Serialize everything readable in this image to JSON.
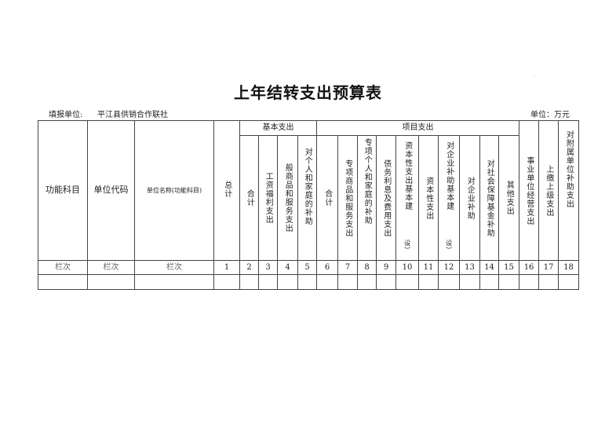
{
  "title": "上年结转支出预算表",
  "filler_label": "填报单位:",
  "filler_value": "平江县供销合作联社",
  "unit": "单位：万元",
  "header": {
    "func_subject": "功能科目",
    "unit_code": "单位代码",
    "unit_name": "单位名称(功能科目)",
    "total": "总计",
    "basic_group": "基本支出",
    "project_group": "项目支出",
    "basic_cols": [
      "合计",
      "工资福利支出",
      "般商品和服务支出",
      "对个人和家庭的补助"
    ],
    "project_cols": [
      "合计",
      "专项商品和服务支出",
      "专项个人和家庭的补助",
      "债务利息及费用支出",
      "资本性支出基本建",
      "资本性支出",
      "对企业补助基本建",
      "对企业补助",
      "对社会保障基金补助",
      "其他支出"
    ],
    "tail_cols": [
      "事业单位经营支出",
      "上缴上级支出",
      "对附属单位补助支出"
    ],
    "split_suffix": "设）"
  },
  "index_row": {
    "labels": [
      "栏次",
      "栏次",
      "栏次"
    ],
    "numbers": [
      "1",
      "2",
      "3",
      "4",
      "5",
      "6",
      "7",
      "8",
      "9",
      "10",
      "11",
      "12",
      "13",
      "14",
      "15",
      "16",
      "17",
      "18"
    ]
  }
}
